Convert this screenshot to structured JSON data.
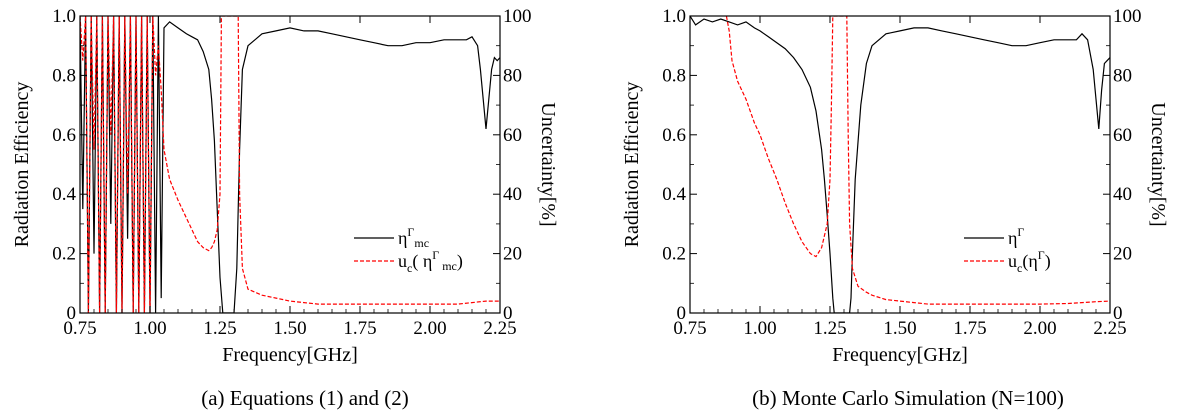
{
  "chart_data": [
    {
      "type": "line",
      "caption": "(a)  Equations (1) and (2)",
      "xlabel": "Frequency[GHz]",
      "ylabel": "Radiation Efficiency",
      "ylabel_right": "Uncertainty[%]",
      "xlim": [
        0.75,
        2.25
      ],
      "ylim": [
        0,
        1.0
      ],
      "ylim_right": [
        0,
        100
      ],
      "x_tick_labels": [
        "0.75",
        "1.00",
        "1.25",
        "1.50",
        "1.75",
        "2.00",
        "2.25"
      ],
      "y_tick_labels": [
        "0",
        "0.2",
        "0.4",
        "0.6",
        "0.8",
        "1.0"
      ],
      "y_right_tick_labels": [
        "0",
        "20",
        "40",
        "60",
        "80",
        "100"
      ],
      "grid": false,
      "legend_position": "lower-right",
      "series": [
        {
          "name": "η^Γ_mc",
          "base": "η",
          "sup": "Γ",
          "sub": "mc",
          "axis": "left",
          "color": "#000000",
          "dash": "solid",
          "x": [
            0.75,
            0.76,
            0.77,
            0.78,
            0.79,
            0.8,
            0.81,
            0.82,
            0.83,
            0.84,
            0.85,
            0.86,
            0.87,
            0.88,
            0.89,
            0.9,
            0.91,
            0.92,
            0.93,
            0.94,
            0.95,
            0.96,
            0.97,
            0.98,
            0.99,
            1.0,
            1.01,
            1.02,
            1.03,
            1.04,
            1.05,
            1.07,
            1.1,
            1.13,
            1.15,
            1.17,
            1.19,
            1.21,
            1.22,
            1.23,
            1.24,
            1.25,
            1.26,
            1.27,
            1.28,
            1.29,
            1.3,
            1.31,
            1.32,
            1.33,
            1.35,
            1.4,
            1.45,
            1.5,
            1.55,
            1.6,
            1.65,
            1.7,
            1.75,
            1.8,
            1.85,
            1.9,
            1.95,
            2.0,
            2.05,
            2.1,
            2.13,
            2.15,
            2.17,
            2.18,
            2.19,
            2.2,
            2.21,
            2.22,
            2.23,
            2.24,
            2.25
          ],
          "y": [
            1.0,
            0.35,
            1.0,
            0.0,
            1.0,
            0.2,
            1.0,
            0.0,
            1.0,
            0.0,
            1.0,
            0.3,
            1.0,
            0.0,
            1.0,
            0.0,
            1.0,
            0.25,
            1.0,
            0.0,
            1.0,
            0.0,
            1.0,
            0.0,
            1.0,
            0.0,
            1.0,
            0.0,
            1.0,
            0.05,
            0.96,
            0.98,
            0.96,
            0.94,
            0.93,
            0.92,
            0.88,
            0.82,
            0.72,
            0.58,
            0.35,
            0.12,
            0.0,
            0.0,
            0.0,
            0.0,
            0.0,
            0.15,
            0.55,
            0.82,
            0.9,
            0.94,
            0.95,
            0.96,
            0.95,
            0.95,
            0.94,
            0.93,
            0.92,
            0.91,
            0.9,
            0.9,
            0.91,
            0.91,
            0.92,
            0.92,
            0.92,
            0.93,
            0.9,
            0.82,
            0.72,
            0.62,
            0.72,
            0.82,
            0.86,
            0.85,
            0.86
          ]
        },
        {
          "name": "uc( η^Γ_mc)",
          "base": "u",
          "basesub": "c",
          "inner": "η",
          "sup": "Γ",
          "sub": "mc",
          "spaced": true,
          "axis": "right",
          "color": "#ff0000",
          "dash": "dashed",
          "x": [
            0.75,
            0.76,
            0.77,
            0.78,
            0.79,
            0.8,
            0.81,
            0.82,
            0.83,
            0.84,
            0.85,
            0.86,
            0.87,
            0.88,
            0.89,
            0.9,
            0.91,
            0.92,
            0.93,
            0.94,
            0.95,
            0.96,
            0.97,
            0.98,
            0.99,
            1.0,
            1.01,
            1.02,
            1.03,
            1.04,
            1.05,
            1.07,
            1.1,
            1.13,
            1.15,
            1.17,
            1.19,
            1.21,
            1.22,
            1.23,
            1.24,
            1.25,
            1.255,
            1.26,
            1.27,
            1.29,
            1.31,
            1.315,
            1.32,
            1.33,
            1.35,
            1.4,
            1.45,
            1.5,
            1.55,
            1.6,
            1.7,
            1.8,
            1.9,
            2.0,
            2.1,
            2.15,
            2.2,
            2.25
          ],
          "y": [
            100,
            85,
            100,
            0,
            100,
            55,
            100,
            0,
            100,
            0,
            100,
            60,
            100,
            0,
            100,
            0,
            100,
            40,
            100,
            0,
            100,
            0,
            100,
            0,
            100,
            0,
            100,
            80,
            90,
            75,
            55,
            45,
            38,
            32,
            28,
            24,
            22,
            21,
            22,
            24,
            28,
            40,
            100,
            100,
            100,
            100,
            100,
            100,
            40,
            15,
            8,
            6,
            5,
            4,
            3.5,
            3,
            3,
            3,
            3,
            3,
            3,
            3.5,
            4,
            4
          ]
        }
      ]
    },
    {
      "type": "line",
      "caption": "(b) Monte Carlo Simulation (N=100)",
      "xlabel": "Frequency[GHz]",
      "ylabel": "Radiation Efficiency",
      "ylabel_right": "Uncertainty[%]",
      "xlim": [
        0.75,
        2.25
      ],
      "ylim": [
        0,
        1.0
      ],
      "ylim_right": [
        0,
        100
      ],
      "x_tick_labels": [
        "0.75",
        "1.00",
        "1.25",
        "1.50",
        "1.75",
        "2.00",
        "2.25"
      ],
      "y_tick_labels": [
        "0",
        "0.2",
        "0.4",
        "0.6",
        "0.8",
        "1.0"
      ],
      "y_right_tick_labels": [
        "0",
        "20",
        "40",
        "60",
        "80",
        "100"
      ],
      "grid": false,
      "legend_position": "lower-right",
      "series": [
        {
          "name": "η^Γ",
          "base": "η",
          "sup": "Γ",
          "axis": "left",
          "color": "#000000",
          "dash": "solid",
          "x": [
            0.75,
            0.77,
            0.8,
            0.83,
            0.86,
            0.89,
            0.92,
            0.95,
            0.98,
            1.0,
            1.03,
            1.06,
            1.09,
            1.12,
            1.15,
            1.18,
            1.2,
            1.22,
            1.23,
            1.24,
            1.25,
            1.26,
            1.265,
            1.27,
            1.3,
            1.32,
            1.325,
            1.33,
            1.34,
            1.36,
            1.38,
            1.4,
            1.45,
            1.5,
            1.55,
            1.6,
            1.65,
            1.7,
            1.75,
            1.8,
            1.85,
            1.9,
            1.95,
            2.0,
            2.05,
            2.1,
            2.13,
            2.15,
            2.17,
            2.19,
            2.2,
            2.21,
            2.22,
            2.23,
            2.25
          ],
          "y": [
            1.0,
            0.97,
            0.99,
            0.98,
            0.99,
            0.98,
            0.97,
            0.98,
            0.96,
            0.95,
            0.93,
            0.91,
            0.89,
            0.86,
            0.82,
            0.76,
            0.68,
            0.55,
            0.45,
            0.33,
            0.2,
            0.05,
            0.0,
            0.0,
            0.0,
            0.0,
            0.05,
            0.2,
            0.45,
            0.7,
            0.84,
            0.9,
            0.94,
            0.95,
            0.96,
            0.96,
            0.95,
            0.94,
            0.93,
            0.92,
            0.91,
            0.9,
            0.9,
            0.91,
            0.92,
            0.92,
            0.92,
            0.94,
            0.92,
            0.82,
            0.72,
            0.62,
            0.75,
            0.84,
            0.86
          ]
        },
        {
          "name": "uc(η^Γ)",
          "base": "u",
          "basesub": "c",
          "inner": "η",
          "sup": "Γ",
          "axis": "right",
          "color": "#ff0000",
          "dash": "dashed",
          "x": [
            0.88,
            0.89,
            0.9,
            0.92,
            0.95,
            0.98,
            1.0,
            1.03,
            1.06,
            1.09,
            1.12,
            1.15,
            1.18,
            1.2,
            1.22,
            1.24,
            1.25,
            1.255,
            1.26,
            1.29,
            1.31,
            1.315,
            1.32,
            1.33,
            1.35,
            1.38,
            1.4,
            1.45,
            1.5,
            1.55,
            1.6,
            1.7,
            1.8,
            1.9,
            2.0,
            2.1,
            2.2,
            2.25
          ],
          "y": [
            100,
            95,
            85,
            78,
            72,
            64,
            60,
            52,
            45,
            37,
            30,
            24,
            20,
            19,
            22,
            30,
            45,
            70,
            100,
            100,
            100,
            60,
            30,
            15,
            9,
            7,
            6,
            4.5,
            4,
            3.5,
            3,
            3,
            3,
            3,
            3,
            3.2,
            3.8,
            4
          ]
        }
      ]
    }
  ]
}
